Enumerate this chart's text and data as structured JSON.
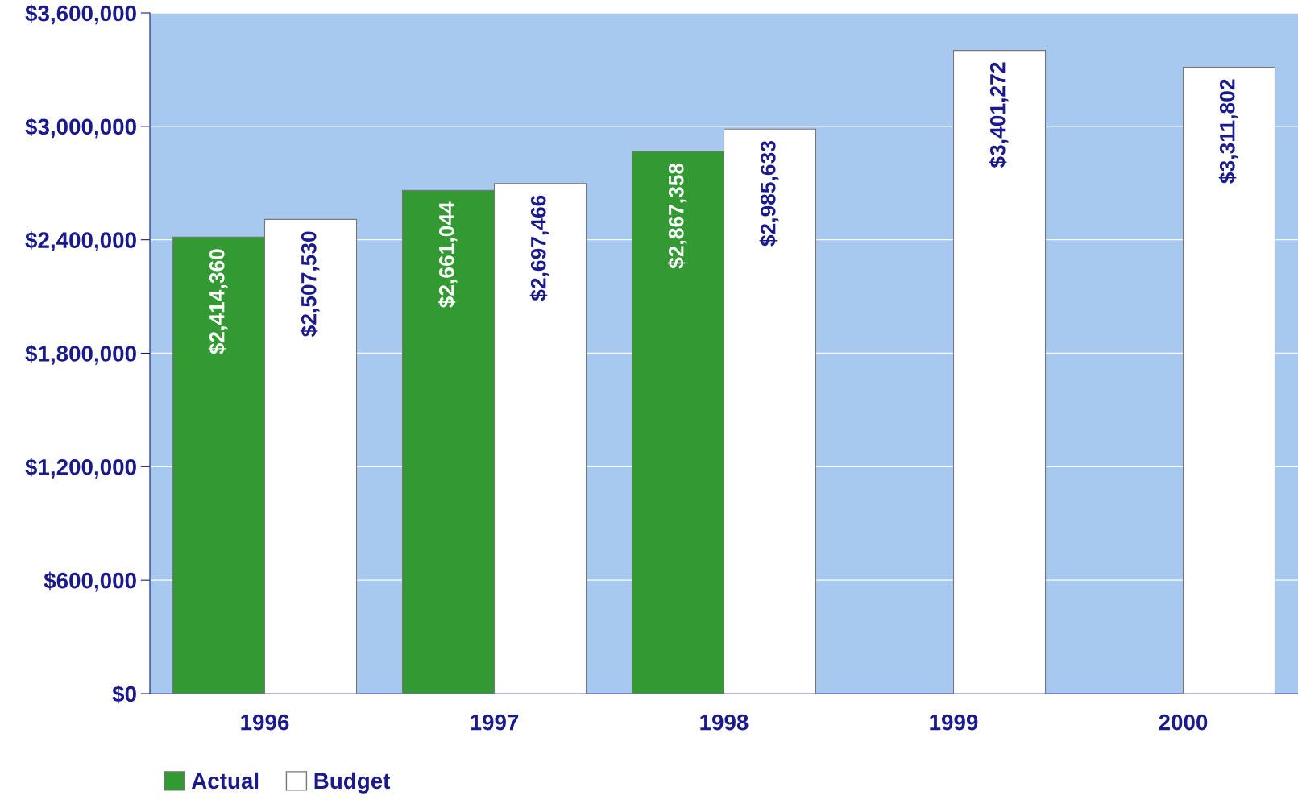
{
  "chart_data": {
    "type": "bar",
    "categories": [
      "1996",
      "1997",
      "1998",
      "1999",
      "2000"
    ],
    "series": [
      {
        "name": "Actual",
        "color": "#339933",
        "values": [
          2414360,
          2661044,
          2867358,
          null,
          null
        ],
        "value_labels": [
          "$2,414,360",
          "$2,661,044",
          "$2,867,358",
          null,
          null
        ]
      },
      {
        "name": "Budget",
        "color": "#ffffff",
        "values": [
          2507530,
          2697466,
          2985633,
          3401272,
          3311802
        ],
        "value_labels": [
          "$2,507,530",
          "$2,697,466",
          "$2,985,633",
          "$3,401,272",
          "$3,311,802"
        ]
      }
    ],
    "ylim": [
      0,
      3600000
    ],
    "yticks": [
      {
        "value": 0,
        "label": "$0"
      },
      {
        "value": 600000,
        "label": "$600,000"
      },
      {
        "value": 1200000,
        "label": "$1,200,000"
      },
      {
        "value": 1800000,
        "label": "$1,800,000"
      },
      {
        "value": 2400000,
        "label": "$2,400,000"
      },
      {
        "value": 3000000,
        "label": "$3,000,000"
      },
      {
        "value": 3600000,
        "label": "$3,600,000"
      }
    ],
    "grid": "y",
    "legend": "bottom left"
  }
}
